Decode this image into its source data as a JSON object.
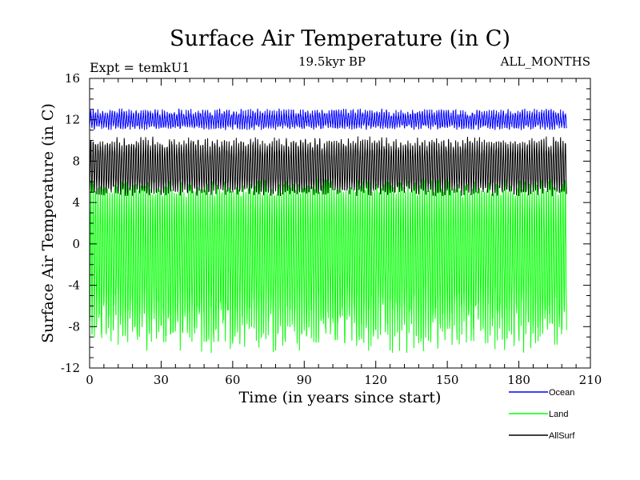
{
  "chart_data": {
    "type": "line",
    "title": "Surface Air Temperature (in C)",
    "subtitle_left": "Expt = temkU1",
    "subtitle_center": "19.5kyr BP",
    "subtitle_right": "ALL_MONTHS",
    "xlabel": "Time (in years since start)",
    "ylabel": "Surface Air Temperature (in C)",
    "xlim": [
      0,
      210
    ],
    "ylim": [
      -12,
      16
    ],
    "x_ticks": [
      0,
      30,
      60,
      90,
      120,
      150,
      180,
      210
    ],
    "y_ticks": [
      -12,
      -8,
      -4,
      0,
      4,
      8,
      12,
      16
    ],
    "x_tick_labels": [
      "0",
      "30",
      "60",
      "90",
      "120",
      "150",
      "180",
      "210"
    ],
    "y_tick_labels": [
      "-12",
      "-8",
      "-4",
      "0",
      "4",
      "8",
      "12",
      "16"
    ],
    "x_minor_step": 6,
    "y_minor_step": 1,
    "time_end": 200,
    "samples_per_year": 12,
    "series": [
      {
        "name": "Ocean",
        "color": "#0000ff",
        "min_approx": 11.2,
        "max_approx": 12.9,
        "trough_range": [
          11.0,
          11.6
        ],
        "peak_range": [
          12.3,
          13.1
        ]
      },
      {
        "name": "AllSurf",
        "color": "#000000",
        "min_approx": 4.8,
        "max_approx": 10.2,
        "trough_range": [
          4.6,
          5.6
        ],
        "peak_range": [
          9.2,
          10.4
        ]
      },
      {
        "name": "Land",
        "color": "#00ff00",
        "min_approx": -10.0,
        "max_approx": 5.5,
        "trough_range": [
          -10.6,
          -5.5
        ],
        "peak_range": [
          4.5,
          6.3
        ]
      }
    ],
    "legend": [
      {
        "label": "Ocean",
        "color": "#0000ff"
      },
      {
        "label": "Land",
        "color": "#00ff00"
      },
      {
        "label": "AllSurf",
        "color": "#000000"
      }
    ],
    "legend_position": "bottom-right, below plot"
  }
}
